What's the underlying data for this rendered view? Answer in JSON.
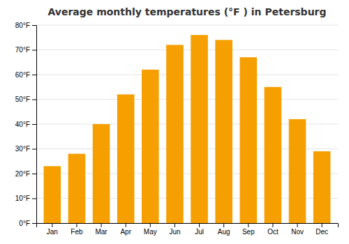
{
  "chart_data": {
    "type": "bar",
    "title": "Average monthly temperatures (°F ) in Petersburg",
    "categories": [
      "Jan",
      "Feb",
      "Mar",
      "Apr",
      "May",
      "Jun",
      "Jul",
      "Aug",
      "Sep",
      "Oct",
      "Nov",
      "Dec"
    ],
    "values": [
      23,
      28,
      40,
      52,
      62,
      72,
      76,
      74,
      67,
      55,
      42,
      29
    ],
    "color": "#F5A000",
    "ylim": [
      0,
      80
    ],
    "yticks": [
      {
        "value": 0,
        "label": "0°F"
      },
      {
        "value": 10,
        "label": "10°F"
      },
      {
        "value": 20,
        "label": "20°F"
      },
      {
        "value": 30,
        "label": "30°F"
      },
      {
        "value": 40,
        "label": "40°F"
      },
      {
        "value": 50,
        "label": "50°F"
      },
      {
        "value": 60,
        "label": "60°F"
      },
      {
        "value": 70,
        "label": "70°F"
      },
      {
        "value": 80,
        "label": "80°F"
      }
    ],
    "grid": true
  }
}
